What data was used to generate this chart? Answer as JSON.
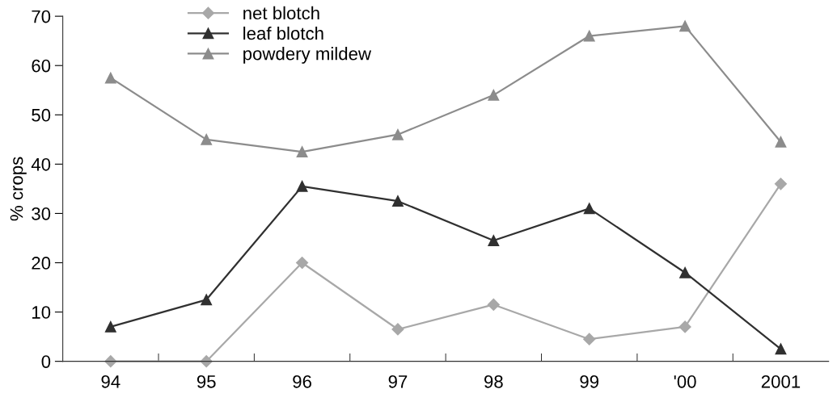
{
  "chart_data": {
    "type": "line",
    "ylabel": "% crops",
    "categories": [
      "94",
      "95",
      "96",
      "97",
      "98",
      "99",
      "'00",
      "2001"
    ],
    "ylim": [
      0,
      70
    ],
    "yticks": [
      0,
      10,
      20,
      30,
      40,
      50,
      60,
      70
    ],
    "grid": false,
    "legend": "top left",
    "series": [
      {
        "name": "net blotch",
        "color": "#a8a8a8",
        "marker": "diamond",
        "values": [
          0,
          0,
          20,
          6.5,
          11.5,
          4.5,
          7,
          36
        ]
      },
      {
        "name": "leaf blotch",
        "color": "#303030",
        "marker": "triangle",
        "values": [
          7,
          12.5,
          35.5,
          32.5,
          24.5,
          31,
          18,
          2.5
        ]
      },
      {
        "name": "powdery mildew",
        "color": "#8c8c8c",
        "marker": "triangle",
        "values": [
          57.5,
          45,
          42.5,
          46,
          54,
          66,
          68,
          44.5
        ]
      }
    ]
  }
}
